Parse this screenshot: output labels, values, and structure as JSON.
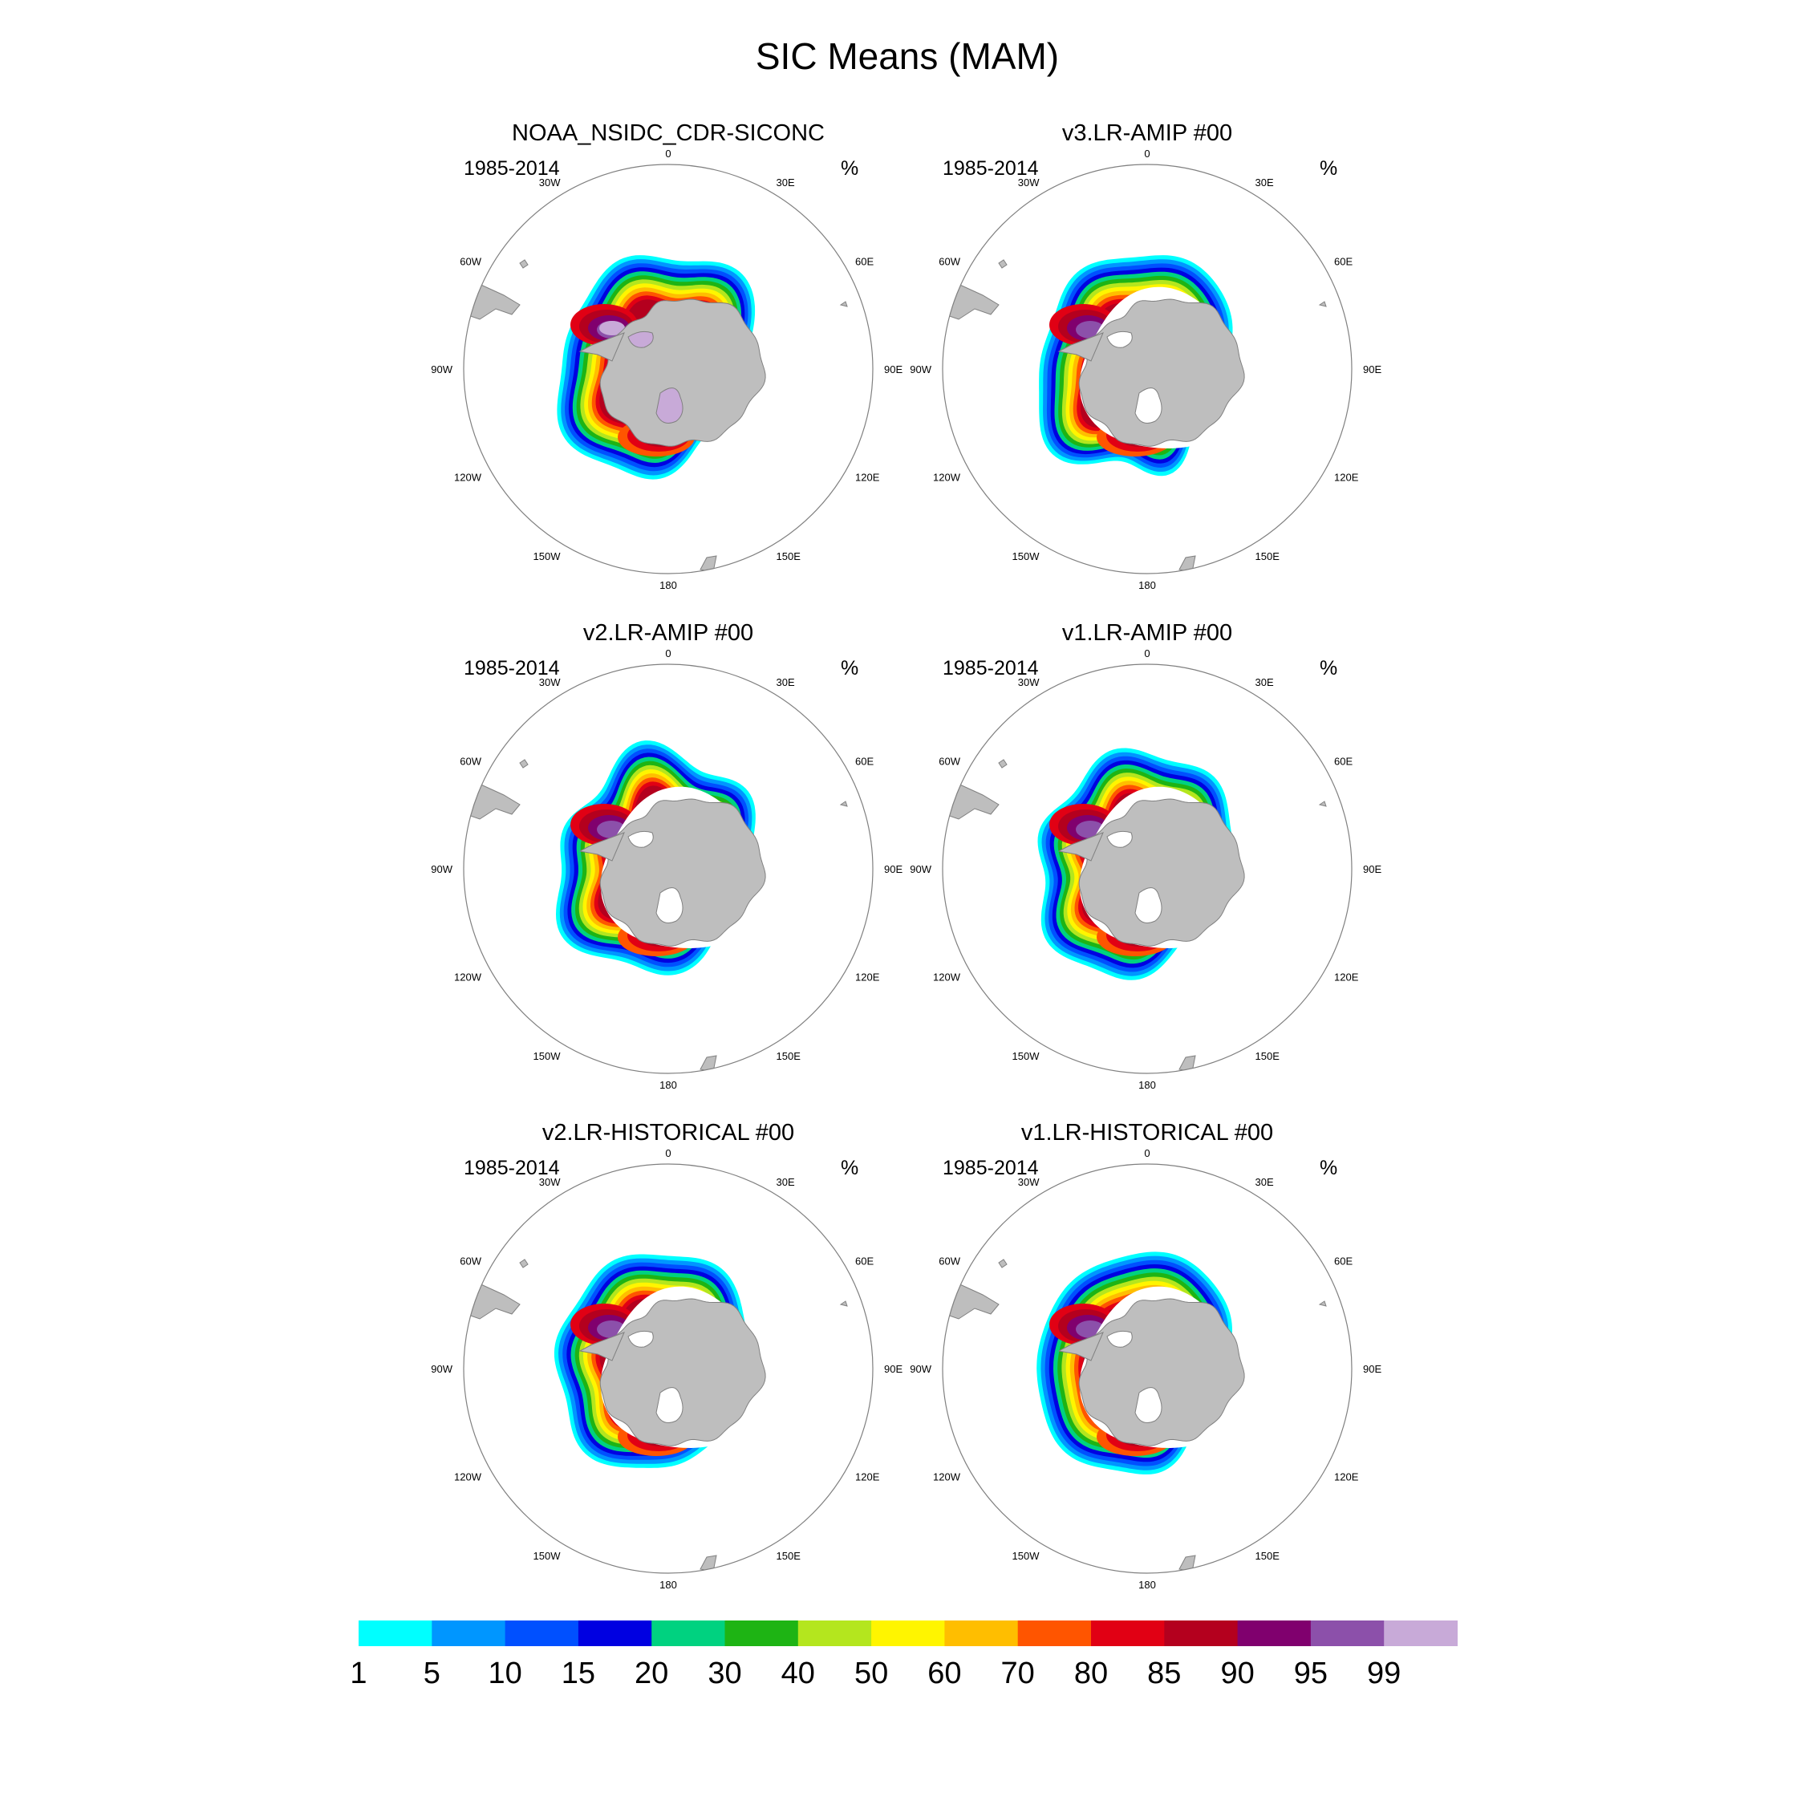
{
  "figure": {
    "title": "SIC Means (MAM)"
  },
  "panels": [
    {
      "title": "NOAA_NSIDC_CDR-SICONC",
      "period": "1985-2014",
      "units": "%"
    },
    {
      "title": "v3.LR-AMIP  #00",
      "period": "1985-2014",
      "units": "%"
    },
    {
      "title": "v2.LR-AMIP  #00",
      "period": "1985-2014",
      "units": "%"
    },
    {
      "title": "v1.LR-AMIP  #00",
      "period": "1985-2014",
      "units": "%"
    },
    {
      "title": "v2.LR-HISTORICAL  #00",
      "period": "1985-2014",
      "units": "%"
    },
    {
      "title": "v1.LR-HISTORICAL  #00",
      "period": "1985-2014",
      "units": "%"
    }
  ],
  "map": {
    "projection": "south-polar-stereographic",
    "longitude_labels": [
      "0",
      "30E",
      "60E",
      "90E",
      "120E",
      "150E",
      "180",
      "150W",
      "120W",
      "90W",
      "60W",
      "30W"
    ],
    "land_color": "#bebebe",
    "outline_color": "#808080"
  },
  "colorbar": {
    "labels": [
      "1",
      "5",
      "10",
      "15",
      "20",
      "30",
      "40",
      "50",
      "60",
      "70",
      "80",
      "85",
      "90",
      "95",
      "99"
    ],
    "colors": [
      "#00ffff",
      "#0096ff",
      "#0050ff",
      "#0000e1",
      "#00d280",
      "#1eb414",
      "#b4e61e",
      "#fff500",
      "#ffbe00",
      "#ff5500",
      "#e10014",
      "#b4001e",
      "#80006e",
      "#8c50aa",
      "#c8aad8"
    ]
  }
}
